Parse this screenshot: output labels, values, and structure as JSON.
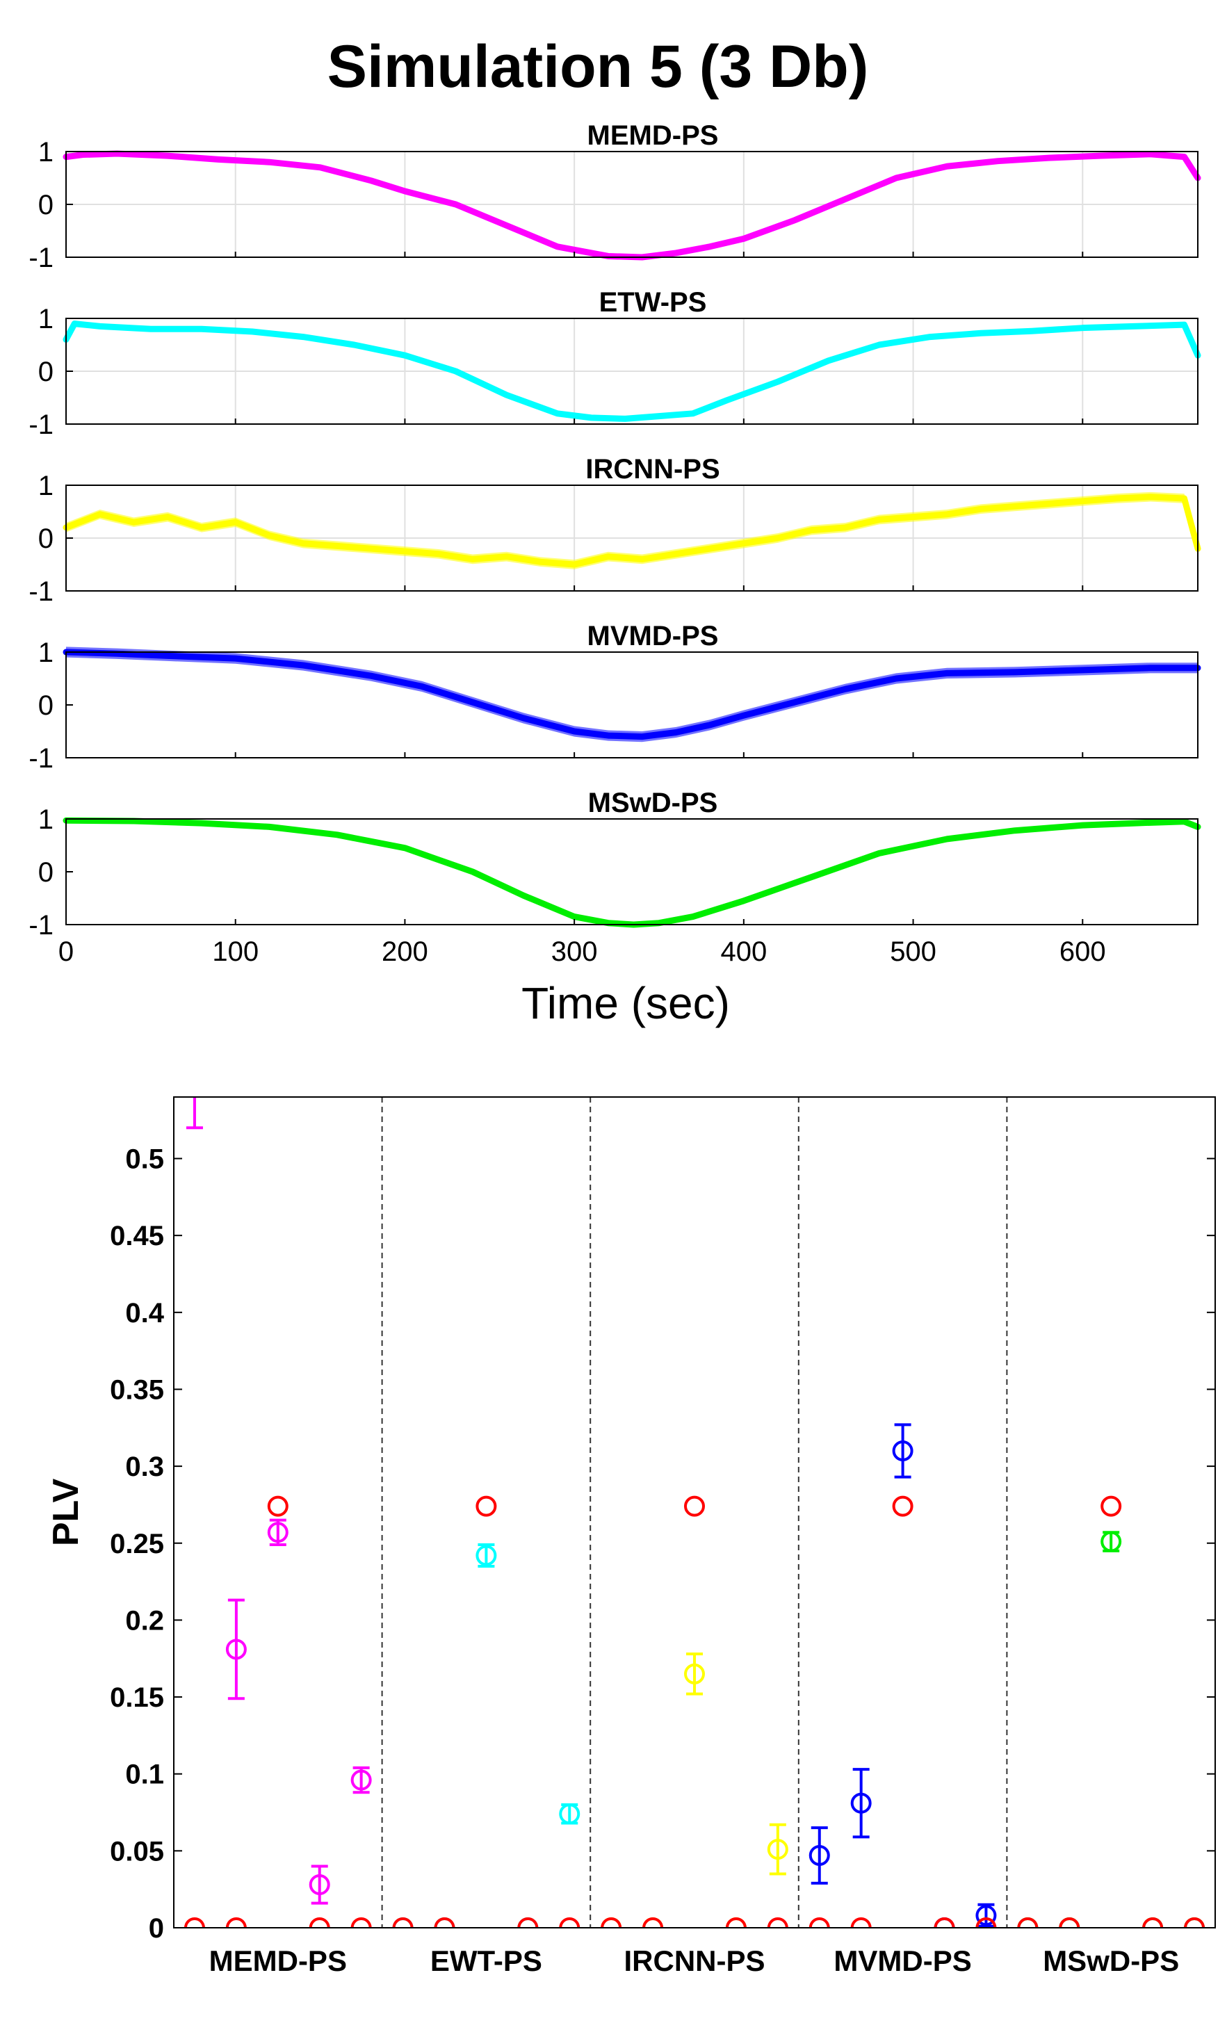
{
  "figure_title": "Simulation 5 (3 Db)",
  "chart_data": [
    {
      "type": "line",
      "title": "MEMD-PS",
      "color": "#ff00ff",
      "band": 0.02,
      "xlim": [
        0,
        668
      ],
      "ylim": [
        -1,
        1
      ],
      "yticks": [
        "-1",
        "0",
        "1"
      ],
      "grid": true,
      "show_xticks": false,
      "x": [
        0,
        10,
        30,
        60,
        90,
        120,
        150,
        180,
        200,
        230,
        260,
        290,
        320,
        340,
        360,
        380,
        400,
        430,
        460,
        490,
        520,
        550,
        580,
        610,
        640,
        660,
        668
      ],
      "y": [
        0.9,
        0.94,
        0.96,
        0.92,
        0.85,
        0.8,
        0.7,
        0.45,
        0.25,
        0.0,
        -0.4,
        -0.8,
        -0.98,
        -1.0,
        -0.92,
        -0.8,
        -0.65,
        -0.3,
        0.1,
        0.5,
        0.72,
        0.82,
        0.88,
        0.92,
        0.95,
        0.9,
        0.5
      ]
    },
    {
      "type": "line",
      "title": "ETW-PS",
      "color": "#00ffff",
      "band": 0.05,
      "xlim": [
        0,
        668
      ],
      "ylim": [
        -1,
        1
      ],
      "yticks": [
        "-1",
        "0",
        "1"
      ],
      "grid": true,
      "show_xticks": false,
      "x": [
        0,
        5,
        20,
        50,
        80,
        110,
        140,
        170,
        200,
        230,
        260,
        290,
        310,
        330,
        350,
        370,
        390,
        420,
        450,
        480,
        510,
        540,
        570,
        600,
        630,
        660,
        668
      ],
      "y": [
        0.6,
        0.9,
        0.85,
        0.8,
        0.8,
        0.75,
        0.65,
        0.5,
        0.3,
        0.0,
        -0.45,
        -0.8,
        -0.88,
        -0.9,
        -0.85,
        -0.8,
        -0.55,
        -0.2,
        0.2,
        0.5,
        0.65,
        0.72,
        0.76,
        0.82,
        0.85,
        0.88,
        0.3
      ]
    },
    {
      "type": "line",
      "title": "IRCNN-PS",
      "color": "#ffff00",
      "band": 0.09,
      "xlim": [
        0,
        668
      ],
      "ylim": [
        -1,
        1
      ],
      "yticks": [
        "-1",
        "0",
        "1"
      ],
      "grid": true,
      "show_xticks": false,
      "x": [
        0,
        20,
        40,
        60,
        80,
        100,
        120,
        140,
        160,
        180,
        200,
        220,
        240,
        260,
        280,
        300,
        320,
        340,
        360,
        380,
        400,
        420,
        440,
        460,
        480,
        500,
        520,
        540,
        560,
        580,
        600,
        620,
        640,
        660,
        668
      ],
      "y": [
        0.2,
        0.45,
        0.3,
        0.4,
        0.2,
        0.3,
        0.05,
        -0.1,
        -0.15,
        -0.2,
        -0.25,
        -0.3,
        -0.4,
        -0.35,
        -0.45,
        -0.5,
        -0.35,
        -0.4,
        -0.3,
        -0.2,
        -0.1,
        0.0,
        0.15,
        0.2,
        0.35,
        0.4,
        0.45,
        0.55,
        0.6,
        0.65,
        0.7,
        0.75,
        0.78,
        0.75,
        -0.2
      ]
    },
    {
      "type": "line",
      "title": "MVMD-PS",
      "color": "#0000ff",
      "band": 0.1,
      "xlim": [
        0,
        668
      ],
      "ylim": [
        -1,
        1
      ],
      "yticks": [
        "-1",
        "0",
        "1"
      ],
      "grid": false,
      "show_xticks": false,
      "x": [
        0,
        30,
        60,
        100,
        140,
        180,
        210,
        240,
        270,
        300,
        320,
        340,
        360,
        380,
        400,
        430,
        460,
        490,
        520,
        560,
        600,
        640,
        668
      ],
      "y": [
        1.0,
        0.97,
        0.93,
        0.88,
        0.75,
        0.55,
        0.35,
        0.05,
        -0.25,
        -0.5,
        -0.58,
        -0.6,
        -0.52,
        -0.38,
        -0.2,
        0.05,
        0.3,
        0.5,
        0.6,
        0.62,
        0.66,
        0.7,
        0.7
      ]
    },
    {
      "type": "line",
      "title": "MSwD-PS",
      "color": "#00ee00",
      "band": 0.02,
      "xlim": [
        0,
        668
      ],
      "ylim": [
        -1,
        1
      ],
      "yticks": [
        "-1",
        "0",
        "1"
      ],
      "grid": false,
      "show_xticks": true,
      "xticks": [
        0,
        100,
        200,
        300,
        400,
        500,
        600
      ],
      "xlabel": "Time (sec)",
      "x": [
        0,
        40,
        80,
        120,
        160,
        200,
        240,
        270,
        300,
        320,
        335,
        350,
        370,
        400,
        440,
        480,
        520,
        560,
        600,
        640,
        660,
        668
      ],
      "y": [
        0.97,
        0.96,
        0.92,
        0.85,
        0.7,
        0.45,
        0.0,
        -0.45,
        -0.85,
        -0.97,
        -1.0,
        -0.97,
        -0.85,
        -0.55,
        -0.1,
        0.35,
        0.62,
        0.78,
        0.88,
        0.93,
        0.95,
        0.85
      ]
    },
    {
      "type": "scatter",
      "ylabel": "PLV",
      "ylim": [
        0,
        0.54
      ],
      "yticks": [
        "0",
        "0.05",
        "0.1",
        "0.15",
        "0.2",
        "0.25",
        "0.3",
        "0.35",
        "0.4",
        "0.45",
        "0.5"
      ],
      "xlim": [
        0.5,
        25.5
      ],
      "groups": [
        {
          "label": "MEMD-PS",
          "color": "#ff00ff"
        },
        {
          "label": "EWT-PS",
          "color": "#00ffff"
        },
        {
          "label": "IRCNN-PS",
          "color": "#ffff00"
        },
        {
          "label": "MVMD-PS",
          "color": "#0000ff"
        },
        {
          "label": "MSwD-PS",
          "color": "#00ee00"
        }
      ],
      "reference_color": "#ff0000",
      "reference": [
        0,
        0,
        0.274,
        0,
        0
      ],
      "estimates": [
        [
          {
            "v": 0.56,
            "e": 0.04
          },
          {
            "v": 0.181,
            "e": 0.032
          },
          {
            "v": 0.257,
            "e": 0.008
          },
          {
            "v": 0.028,
            "e": 0.012
          },
          {
            "v": 0.096,
            "e": 0.008
          }
        ],
        [
          {
            "v": 0,
            "e": 0
          },
          {
            "v": 0,
            "e": 0
          },
          {
            "v": 0.242,
            "e": 0.007
          },
          {
            "v": 0,
            "e": 0
          },
          {
            "v": 0.074,
            "e": 0.006
          }
        ],
        [
          {
            "v": 0,
            "e": 0
          },
          {
            "v": 0,
            "e": 0
          },
          {
            "v": 0.165,
            "e": 0.013
          },
          {
            "v": 0,
            "e": 0
          },
          {
            "v": 0.051,
            "e": 0.016
          }
        ],
        [
          {
            "v": 0.047,
            "e": 0.018
          },
          {
            "v": 0.081,
            "e": 0.022
          },
          {
            "v": 0.31,
            "e": 0.017
          },
          {
            "v": 0,
            "e": 0
          },
          {
            "v": 0.008,
            "e": 0.007
          }
        ],
        [
          {
            "v": 0,
            "e": 0
          },
          {
            "v": 0,
            "e": 0
          },
          {
            "v": 0.251,
            "e": 0.006
          },
          {
            "v": 0,
            "e": 0
          },
          {
            "v": 0,
            "e": 0
          }
        ]
      ]
    }
  ]
}
